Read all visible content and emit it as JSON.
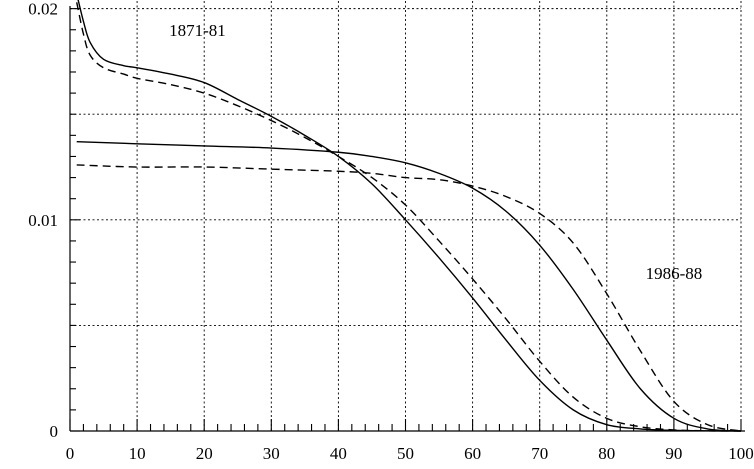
{
  "chart_data": {
    "type": "line",
    "title": "",
    "xlabel": "",
    "ylabel": "",
    "xlim": [
      0,
      100
    ],
    "ylim": [
      0,
      0.02
    ],
    "x_ticks": [
      "0",
      "10",
      "20",
      "30",
      "40",
      "50",
      "60",
      "70",
      "80",
      "90",
      "100"
    ],
    "y_ticks": [
      "0",
      "0.01",
      "0.02"
    ],
    "grid": true,
    "annotations": [
      {
        "text": "1871-81",
        "x": 19,
        "y": 0.0187
      },
      {
        "text": "1986-88",
        "x": 90,
        "y": 0.0072
      }
    ],
    "series": [
      {
        "style": "solid",
        "x": [
          1,
          2,
          3,
          5,
          8,
          10,
          15,
          20,
          25,
          30,
          35,
          40,
          45,
          50,
          55,
          60,
          65,
          70,
          75,
          80,
          85,
          90,
          95,
          100
        ],
        "y": [
          0.0207,
          0.0194,
          0.0184,
          0.0176,
          0.0173,
          0.0172,
          0.0169,
          0.0165,
          0.0157,
          0.0149,
          0.014,
          0.013,
          0.0117,
          0.01,
          0.0082,
          0.0063,
          0.0043,
          0.0024,
          0.001,
          0.0003,
          0.0001,
          3e-05,
          1e-05,
          0.0
        ]
      },
      {
        "style": "dashed",
        "x": [
          1,
          2,
          3,
          5,
          8,
          10,
          15,
          20,
          25,
          30,
          35,
          40,
          45,
          50,
          55,
          60,
          65,
          70,
          75,
          80,
          85,
          90,
          95,
          100
        ],
        "y": [
          0.0203,
          0.0188,
          0.0178,
          0.0172,
          0.0169,
          0.0167,
          0.0164,
          0.016,
          0.0154,
          0.0147,
          0.0139,
          0.013,
          0.012,
          0.0107,
          0.009,
          0.0072,
          0.0053,
          0.0033,
          0.0016,
          0.0006,
          0.0002,
          5e-05,
          1e-05,
          0.0
        ]
      },
      {
        "style": "solid",
        "x": [
          1,
          10,
          20,
          30,
          40,
          45,
          50,
          55,
          60,
          65,
          70,
          75,
          80,
          85,
          90,
          95,
          100
        ],
        "y": [
          0.0137,
          0.0136,
          0.0135,
          0.0134,
          0.0132,
          0.013,
          0.0127,
          0.0122,
          0.0115,
          0.0104,
          0.0088,
          0.0067,
          0.0043,
          0.002,
          0.0006,
          0.0001,
          0.0
        ]
      },
      {
        "style": "dashed",
        "x": [
          1,
          10,
          20,
          30,
          40,
          45,
          50,
          55,
          60,
          65,
          70,
          75,
          80,
          85,
          90,
          95,
          100
        ],
        "y": [
          0.0126,
          0.0125,
          0.0125,
          0.0124,
          0.0123,
          0.0122,
          0.012,
          0.0119,
          0.0116,
          0.0111,
          0.0103,
          0.0089,
          0.0065,
          0.0038,
          0.0014,
          0.0003,
          0.0
        ]
      }
    ]
  }
}
